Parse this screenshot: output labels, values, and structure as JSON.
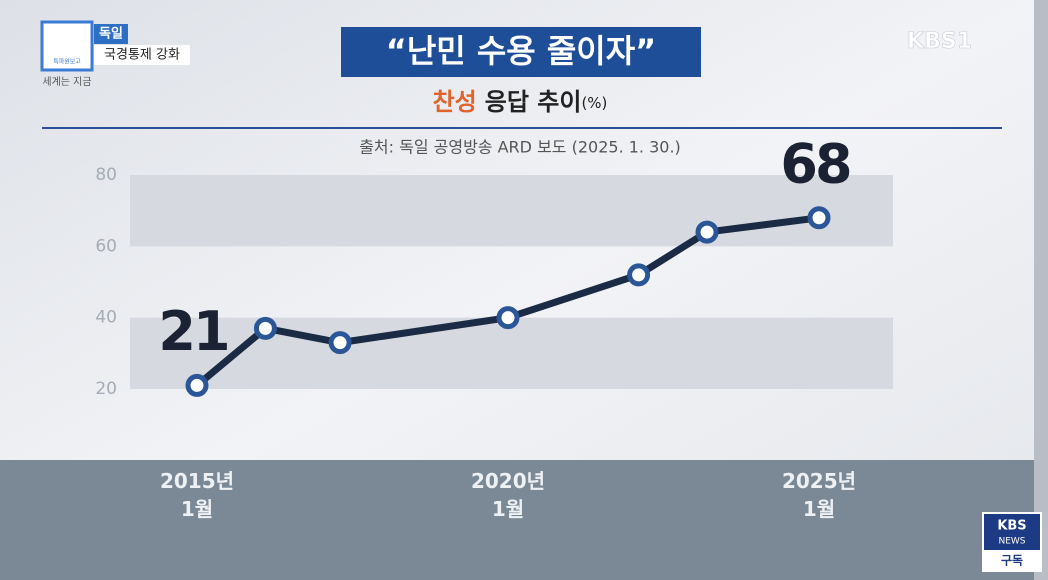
{
  "broadcast": {
    "badge_logo": "특파원보고",
    "badge_program": "세계는 지금",
    "badge_country": "독일",
    "badge_topic": "국경통제 강화",
    "channel": "KBS1",
    "news_logo_top": "KBS",
    "news_logo_mid": "NEWS",
    "subscribe": "구독"
  },
  "chart_data": {
    "type": "line",
    "title": "“난민 수용 줄이자”",
    "subtitle_highlight": "찬성",
    "subtitle": "응답 추이",
    "unit": "(%)",
    "source": "출처: 독일 공영방송 ARD 보도 (2025. 1. 30.)",
    "x": [
      2015,
      2016.1,
      2017.3,
      2020,
      2022.1,
      2023.2,
      2025
    ],
    "xlim": [
      2013.9,
      2026.2
    ],
    "xticks": [
      {
        "value": 2015,
        "label": "2015년\n1월"
      },
      {
        "value": 2020,
        "label": "2020년\n1월"
      },
      {
        "value": 2025,
        "label": "2025년\n1월"
      }
    ],
    "series": [
      {
        "name": "찬성",
        "color": "#1c2b45",
        "marker_color": "#2a5597",
        "values": [
          21,
          37,
          33,
          40,
          52,
          64,
          68
        ],
        "value_labels": [
          "21",
          null,
          null,
          null,
          null,
          null,
          "68"
        ]
      }
    ],
    "ylim": [
      20,
      80
    ],
    "yticks": [
      20,
      40,
      60,
      80
    ],
    "grid": "bands"
  }
}
